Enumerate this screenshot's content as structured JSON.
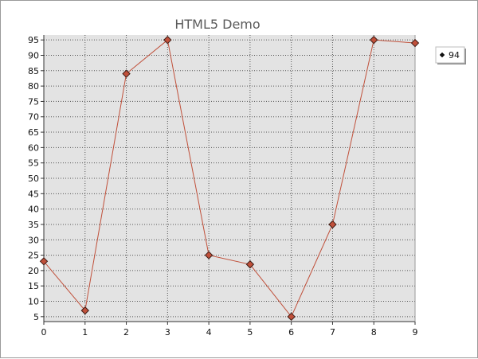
{
  "chart_data": {
    "type": "line",
    "title": "HTML5 Demo",
    "xlabel": "",
    "ylabel": "",
    "x": [
      0,
      1,
      2,
      3,
      4,
      5,
      6,
      7,
      8,
      9
    ],
    "series": [
      {
        "name": "94",
        "values": [
          23,
          7,
          84,
          95,
          25,
          22,
          5,
          35,
          95,
          94
        ]
      }
    ],
    "xlim": [
      0,
      9
    ],
    "ylim": [
      3.4,
      96.6
    ],
    "xticks": [
      0,
      1,
      2,
      3,
      4,
      5,
      6,
      7,
      8,
      9
    ],
    "yticks": [
      5,
      10,
      15,
      20,
      25,
      30,
      35,
      40,
      45,
      50,
      55,
      60,
      65,
      70,
      75,
      80,
      85,
      90,
      95
    ],
    "grid": true,
    "legend": "right",
    "colors": {
      "line": "#c0503a",
      "marker_fill": "#c0503a",
      "marker_stroke": "#3a1a14",
      "plot_bg": "#e3e3e3",
      "grid": "#555555"
    }
  }
}
